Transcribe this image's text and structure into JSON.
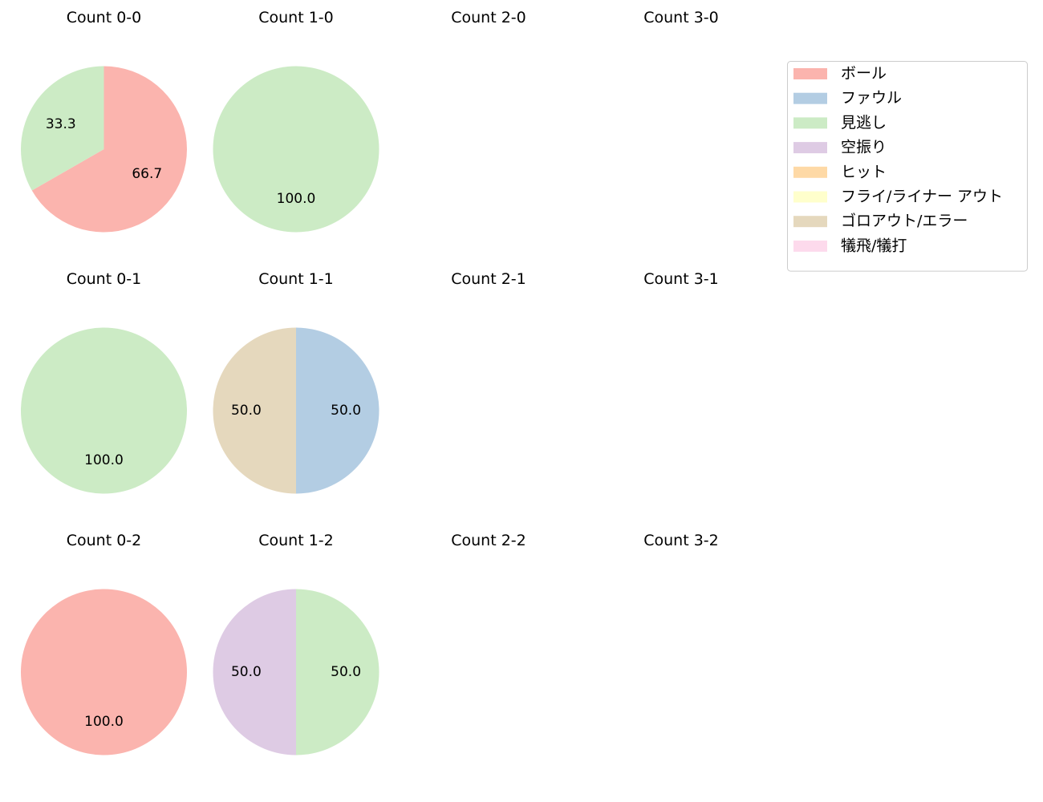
{
  "chart_data": {
    "type": "pie",
    "legend_placement": "upper-right",
    "categories": [
      {
        "key": "ball",
        "label": "ボール",
        "color": "#fbb4ae"
      },
      {
        "key": "foul",
        "label": "ファウル",
        "color": "#b3cde3"
      },
      {
        "key": "looking",
        "label": "見逃し",
        "color": "#ccebc5"
      },
      {
        "key": "swinging",
        "label": "空振り",
        "color": "#decbe4"
      },
      {
        "key": "hit",
        "label": "ヒット",
        "color": "#fed9a6"
      },
      {
        "key": "fly_out",
        "label": "フライ/ライナー アウト",
        "color": "#ffffcc"
      },
      {
        "key": "ground_out",
        "label": "ゴロアウト/エラー",
        "color": "#e5d8bd"
      },
      {
        "key": "sacrifice",
        "label": "犠飛/犠打",
        "color": "#fddaec"
      }
    ],
    "panels": [
      {
        "title": "Count 0-0",
        "slices": [
          {
            "category": "ball",
            "value": 66.7
          },
          {
            "category": "looking",
            "value": 33.3
          }
        ]
      },
      {
        "title": "Count 1-0",
        "slices": [
          {
            "category": "looking",
            "value": 100.0
          }
        ]
      },
      {
        "title": "Count 2-0",
        "slices": []
      },
      {
        "title": "Count 3-0",
        "slices": []
      },
      {
        "title": "Count 0-1",
        "slices": [
          {
            "category": "looking",
            "value": 100.0
          }
        ]
      },
      {
        "title": "Count 1-1",
        "slices": [
          {
            "category": "foul",
            "value": 50.0
          },
          {
            "category": "ground_out",
            "value": 50.0
          }
        ]
      },
      {
        "title": "Count 2-1",
        "slices": []
      },
      {
        "title": "Count 3-1",
        "slices": []
      },
      {
        "title": "Count 0-2",
        "slices": [
          {
            "category": "ball",
            "value": 100.0
          }
        ]
      },
      {
        "title": "Count 1-2",
        "slices": [
          {
            "category": "looking",
            "value": 50.0
          },
          {
            "category": "swinging",
            "value": 50.0
          }
        ]
      },
      {
        "title": "Count 2-2",
        "slices": []
      },
      {
        "title": "Count 3-2",
        "slices": []
      }
    ]
  }
}
